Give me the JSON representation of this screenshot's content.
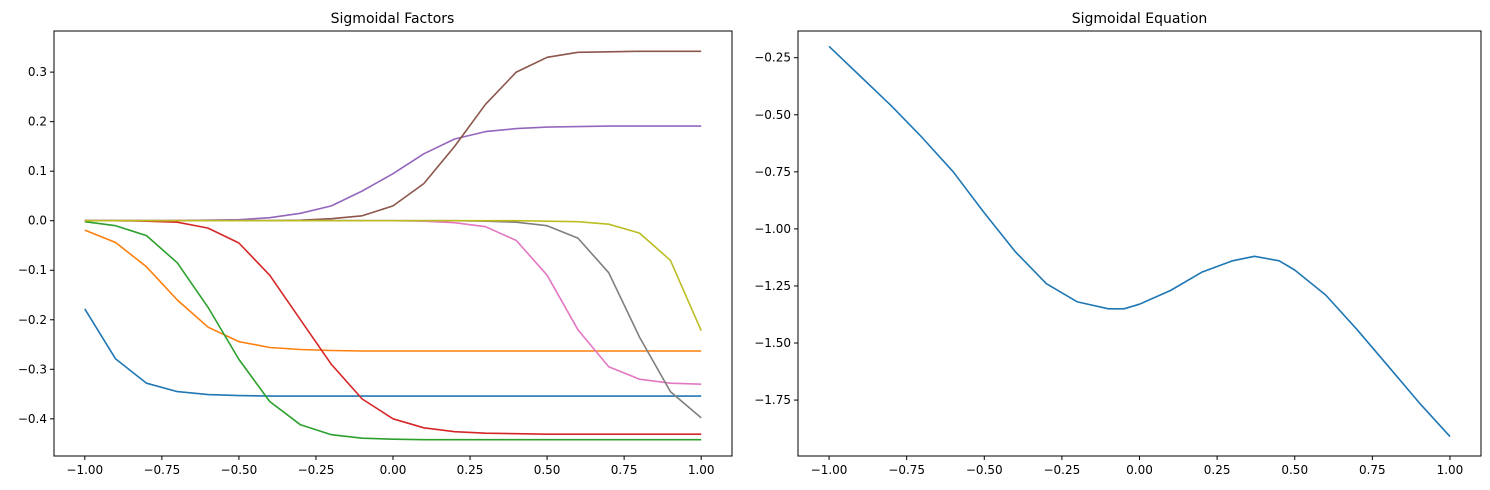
{
  "chart_data": [
    {
      "type": "line",
      "title": "Sigmoidal Factors",
      "xlabel": "",
      "ylabel": "",
      "xlim": [
        -1.1,
        1.1
      ],
      "ylim": [
        -0.475,
        0.383
      ],
      "grid": false,
      "xticks": [
        -1.0,
        -0.75,
        -0.5,
        -0.25,
        0.0,
        0.25,
        0.5,
        0.75,
        1.0
      ],
      "xtick_labels": [
        "−1.00",
        "−0.75",
        "−0.50",
        "−0.25",
        "0.00",
        "0.25",
        "0.50",
        "0.75",
        "1.00"
      ],
      "yticks": [
        -0.4,
        -0.3,
        -0.2,
        -0.1,
        0.0,
        0.1,
        0.2,
        0.3
      ],
      "ytick_labels": [
        "−0.4",
        "−0.3",
        "−0.2",
        "−0.1",
        "0.0",
        "0.1",
        "0.2",
        "0.3"
      ],
      "x": [
        -1.0,
        -0.9,
        -0.8,
        -0.7,
        -0.6,
        -0.5,
        -0.4,
        -0.3,
        -0.2,
        -0.1,
        0.0,
        0.1,
        0.2,
        0.3,
        0.4,
        0.5,
        0.6,
        0.7,
        0.8,
        0.9,
        1.0
      ],
      "series": [
        {
          "color": "#1f77b4",
          "values": [
            -0.178,
            -0.279,
            -0.328,
            -0.345,
            -0.351,
            -0.353,
            -0.354,
            -0.354,
            -0.354,
            -0.354,
            -0.354,
            -0.354,
            -0.354,
            -0.354,
            -0.354,
            -0.354,
            -0.354,
            -0.354,
            -0.354,
            -0.354,
            -0.354
          ]
        },
        {
          "color": "#ff7f0e",
          "values": [
            -0.019,
            -0.044,
            -0.093,
            -0.16,
            -0.215,
            -0.244,
            -0.256,
            -0.26,
            -0.262,
            -0.263,
            -0.263,
            -0.263,
            -0.263,
            -0.263,
            -0.263,
            -0.263,
            -0.263,
            -0.263,
            -0.263,
            -0.263,
            -0.263
          ]
        },
        {
          "color": "#2ca02c",
          "values": [
            -0.002,
            -0.01,
            -0.03,
            -0.085,
            -0.175,
            -0.28,
            -0.365,
            -0.412,
            -0.432,
            -0.439,
            -0.441,
            -0.442,
            -0.442,
            -0.442,
            -0.442,
            -0.442,
            -0.442,
            -0.442,
            -0.442,
            -0.442,
            -0.442
          ]
        },
        {
          "color": "#d62728",
          "values": [
            0.0,
            0.0,
            -0.001,
            -0.003,
            -0.015,
            -0.045,
            -0.11,
            -0.2,
            -0.29,
            -0.36,
            -0.4,
            -0.418,
            -0.426,
            -0.429,
            -0.43,
            -0.431,
            -0.431,
            -0.431,
            -0.431,
            -0.431,
            -0.431
          ]
        },
        {
          "color": "#9467bd",
          "values": [
            0.0,
            0.0,
            0.0,
            0.0,
            0.001,
            0.002,
            0.006,
            0.015,
            0.03,
            0.06,
            0.095,
            0.135,
            0.165,
            0.18,
            0.186,
            0.189,
            0.19,
            0.191,
            0.191,
            0.191,
            0.191
          ]
        },
        {
          "color": "#8c564b",
          "values": [
            0.0,
            0.0,
            0.0,
            0.0,
            0.0,
            0.0,
            0.0,
            0.001,
            0.004,
            0.01,
            0.03,
            0.075,
            0.15,
            0.235,
            0.3,
            0.33,
            0.34,
            0.341,
            0.342,
            0.342,
            0.342
          ]
        },
        {
          "color": "#e377c2",
          "values": [
            0.0,
            0.0,
            0.0,
            0.0,
            0.0,
            0.0,
            0.0,
            0.0,
            0.0,
            0.0,
            0.0,
            -0.001,
            -0.004,
            -0.012,
            -0.04,
            -0.11,
            -0.22,
            -0.295,
            -0.32,
            -0.328,
            -0.33
          ]
        },
        {
          "color": "#7f7f7f",
          "values": [
            0.0,
            0.0,
            0.0,
            0.0,
            0.0,
            0.0,
            0.0,
            0.0,
            0.0,
            0.0,
            0.0,
            0.0,
            0.0,
            -0.001,
            -0.003,
            -0.01,
            -0.035,
            -0.105,
            -0.235,
            -0.345,
            -0.398
          ]
        },
        {
          "color": "#bcbd22",
          "values": [
            0.0,
            0.0,
            0.0,
            0.0,
            0.0,
            0.0,
            0.0,
            0.0,
            0.0,
            0.0,
            0.0,
            0.0,
            0.0,
            0.0,
            0.0,
            -0.001,
            -0.002,
            -0.007,
            -0.025,
            -0.08,
            -0.222
          ]
        }
      ]
    },
    {
      "type": "line",
      "title": "Sigmoidal Equation",
      "xlabel": "",
      "ylabel": "",
      "xlim": [
        -1.1,
        1.1
      ],
      "ylim": [
        -1.995,
        -0.133
      ],
      "grid": false,
      "xticks": [
        -1.0,
        -0.75,
        -0.5,
        -0.25,
        0.0,
        0.25,
        0.5,
        0.75,
        1.0
      ],
      "xtick_labels": [
        "−1.00",
        "−0.75",
        "−0.50",
        "−0.25",
        "0.00",
        "0.25",
        "0.50",
        "0.75",
        "1.00"
      ],
      "yticks": [
        -1.75,
        -1.5,
        -1.25,
        -1.0,
        -0.75,
        -0.5,
        -0.25
      ],
      "ytick_labels": [
        "−1.75",
        "−1.50",
        "−1.25",
        "−1.00",
        "−0.75",
        "−0.50",
        "−0.25"
      ],
      "x": [
        -1.0,
        -0.9,
        -0.8,
        -0.7,
        -0.6,
        -0.5,
        -0.4,
        -0.3,
        -0.2,
        -0.1,
        -0.05,
        0.0,
        0.1,
        0.2,
        0.3,
        0.37,
        0.45,
        0.5,
        0.6,
        0.7,
        0.8,
        0.9,
        1.0
      ],
      "series": [
        {
          "color": "#1f77b4",
          "values": [
            -0.2,
            -0.33,
            -0.46,
            -0.6,
            -0.75,
            -0.93,
            -1.1,
            -1.24,
            -1.32,
            -1.35,
            -1.35,
            -1.33,
            -1.27,
            -1.19,
            -1.14,
            -1.12,
            -1.14,
            -1.18,
            -1.29,
            -1.44,
            -1.6,
            -1.76,
            -1.91
          ]
        }
      ]
    }
  ]
}
